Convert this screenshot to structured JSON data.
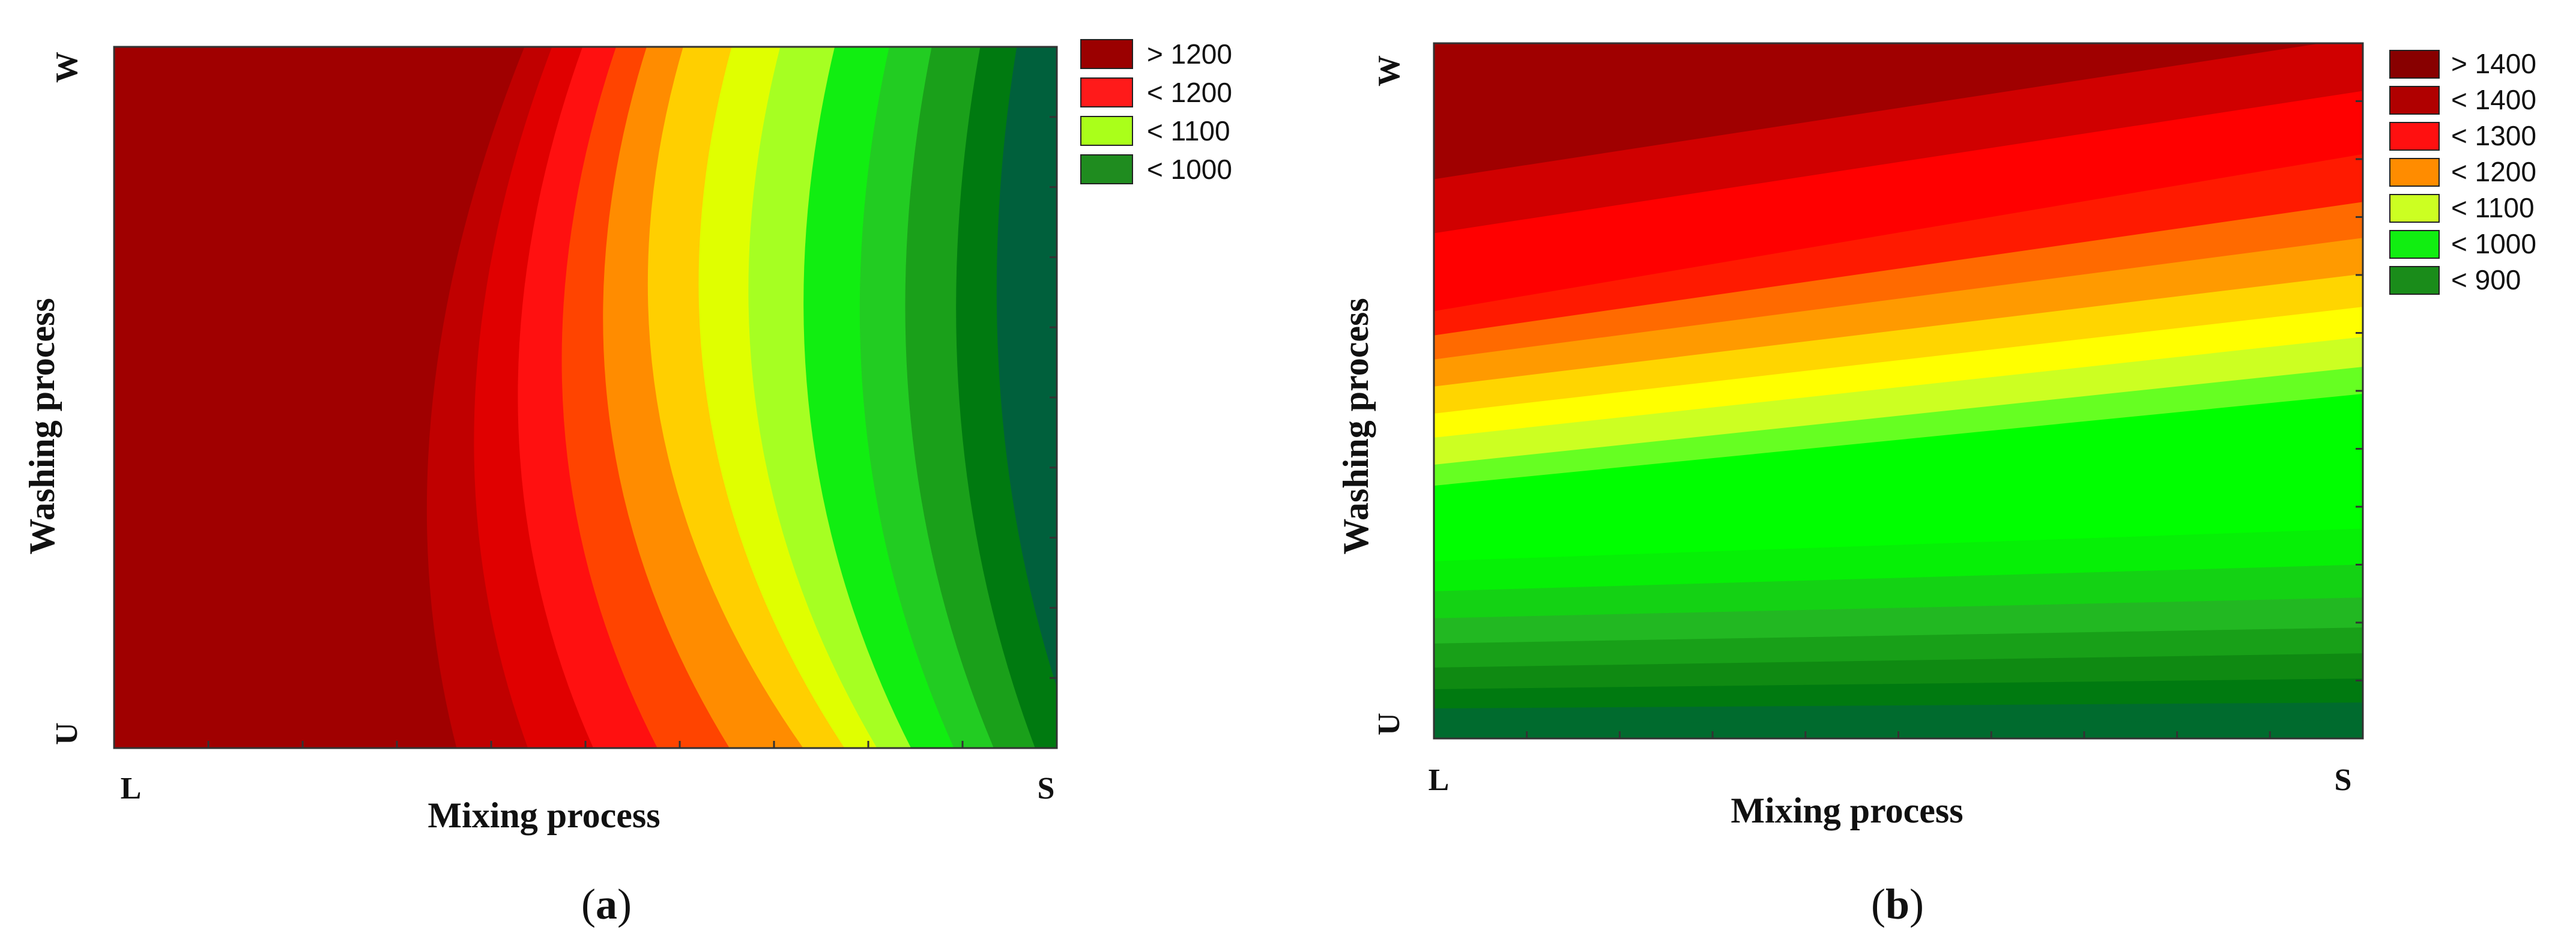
{
  "chart_data": [
    {
      "type": "heatmap",
      "panel_label": "a",
      "xlabel": "Mixing process",
      "ylabel": "Washing process",
      "x_categories": [
        "L",
        "S"
      ],
      "y_categories": [
        "U",
        "W"
      ],
      "legend": {
        "placement": "right",
        "entries": [
          "> 1200",
          "< 1200",
          "< 1100",
          "< 1000"
        ],
        "colors": [
          "#9b0000",
          "#ff1a1a",
          "#aaff1a",
          "#1f8c1f"
        ]
      },
      "contour_levels": [
        850,
        900,
        950,
        1000,
        1050,
        1100,
        1150,
        1200,
        1250
      ],
      "band_colors": [
        "#00603c",
        "#007a10",
        "#1aa01a",
        "#22cc22",
        "#11ee11",
        "#a6ff22",
        "#e0ff00",
        "#ffcf00",
        "#ff8c00",
        "#ff4400",
        "#ff1010",
        "#e00000",
        "#c00000",
        "#a00000"
      ],
      "grid": false
    },
    {
      "type": "heatmap",
      "panel_label": "b",
      "xlabel": "Mixing process",
      "ylabel": "Washing process",
      "x_categories": [
        "L",
        "S"
      ],
      "y_categories": [
        "U",
        "W"
      ],
      "legend": {
        "placement": "right",
        "entries": [
          "> 1400",
          "< 1400",
          "< 1300",
          "< 1200",
          "< 1100",
          "< 1000",
          "< 900"
        ],
        "colors": [
          "#880000",
          "#b00000",
          "#ff1010",
          "#ff8c00",
          "#ccff22",
          "#11ee11",
          "#1a8c1a"
        ]
      },
      "contour_levels": [
        800,
        850,
        900,
        950,
        1000,
        1050,
        1100,
        1150,
        1200,
        1250,
        1300,
        1350,
        1400,
        1450
      ],
      "band_colors": [
        "#006b2e",
        "#007a10",
        "#0f8a12",
        "#18a018",
        "#22b822",
        "#14d214",
        "#06f006",
        "#00ff00",
        "#66ff22",
        "#ccff22",
        "#ffff00",
        "#ffd500",
        "#ff9a00",
        "#ff6a00",
        "#ff1a00",
        "#ff0000",
        "#d00000",
        "#a00000"
      ],
      "grid": false
    }
  ]
}
